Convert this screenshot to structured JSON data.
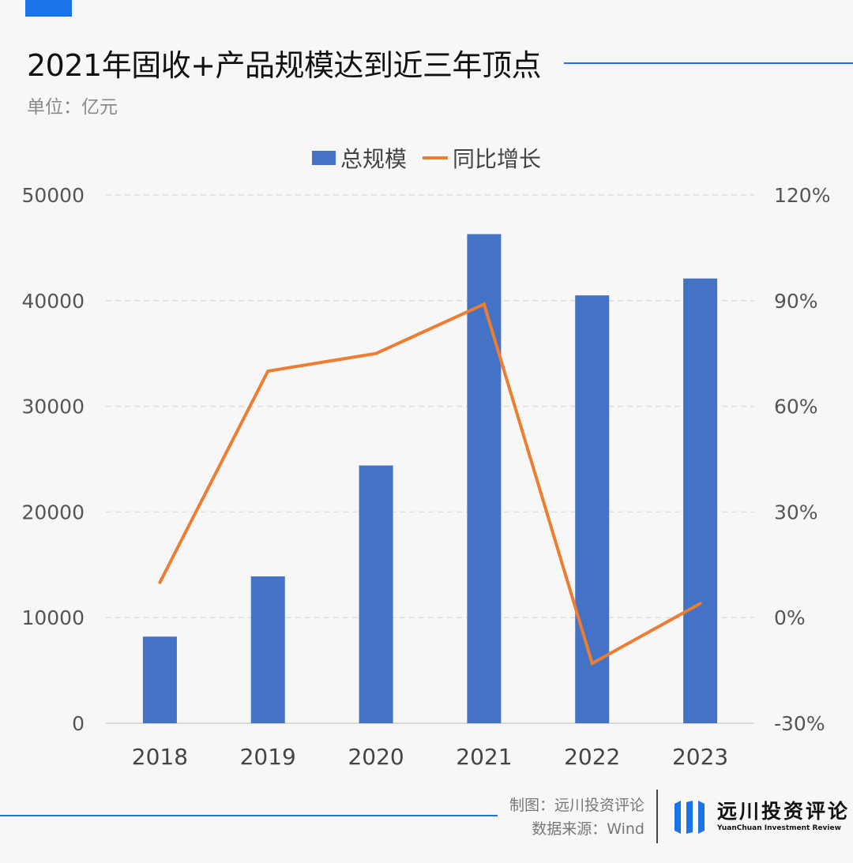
{
  "header": {
    "title": "2021年固收+产品规模达到近三年顶点",
    "unit": "单位：亿元"
  },
  "legend": {
    "bar_label": "总规模",
    "line_label": "同比增长"
  },
  "footer": {
    "credit_line1": "制图：远川投资评论",
    "credit_line2": "数据来源：Wind",
    "brand_cn": "远川投资评论",
    "brand_en": "YuanChuan Investment Review"
  },
  "colors": {
    "bar": "#4472c4",
    "line": "#ed7d31",
    "accent": "#1a73e8",
    "grid": "#dddddd"
  },
  "chart_data": {
    "type": "bar",
    "title": "2021年固收+产品规模达到近三年顶点",
    "categories": [
      "2018",
      "2019",
      "2020",
      "2021",
      "2022",
      "2023"
    ],
    "series": [
      {
        "name": "总规模",
        "type": "bar",
        "axis": "left",
        "values": [
          8200,
          13900,
          24400,
          46300,
          40500,
          42100
        ]
      },
      {
        "name": "同比增长",
        "type": "line",
        "axis": "right",
        "values": [
          0.1,
          0.7,
          0.75,
          0.89,
          -0.13,
          0.04
        ]
      }
    ],
    "y_left": {
      "min": 0,
      "max": 50000,
      "ticks": [
        "0",
        "10000",
        "20000",
        "30000",
        "40000",
        "50000"
      ]
    },
    "y_right": {
      "min": -0.3,
      "max": 1.2,
      "ticks": [
        "-30%",
        "0%",
        "30%",
        "60%",
        "90%",
        "120%"
      ]
    },
    "grid": true,
    "legend_position": "top-center"
  }
}
